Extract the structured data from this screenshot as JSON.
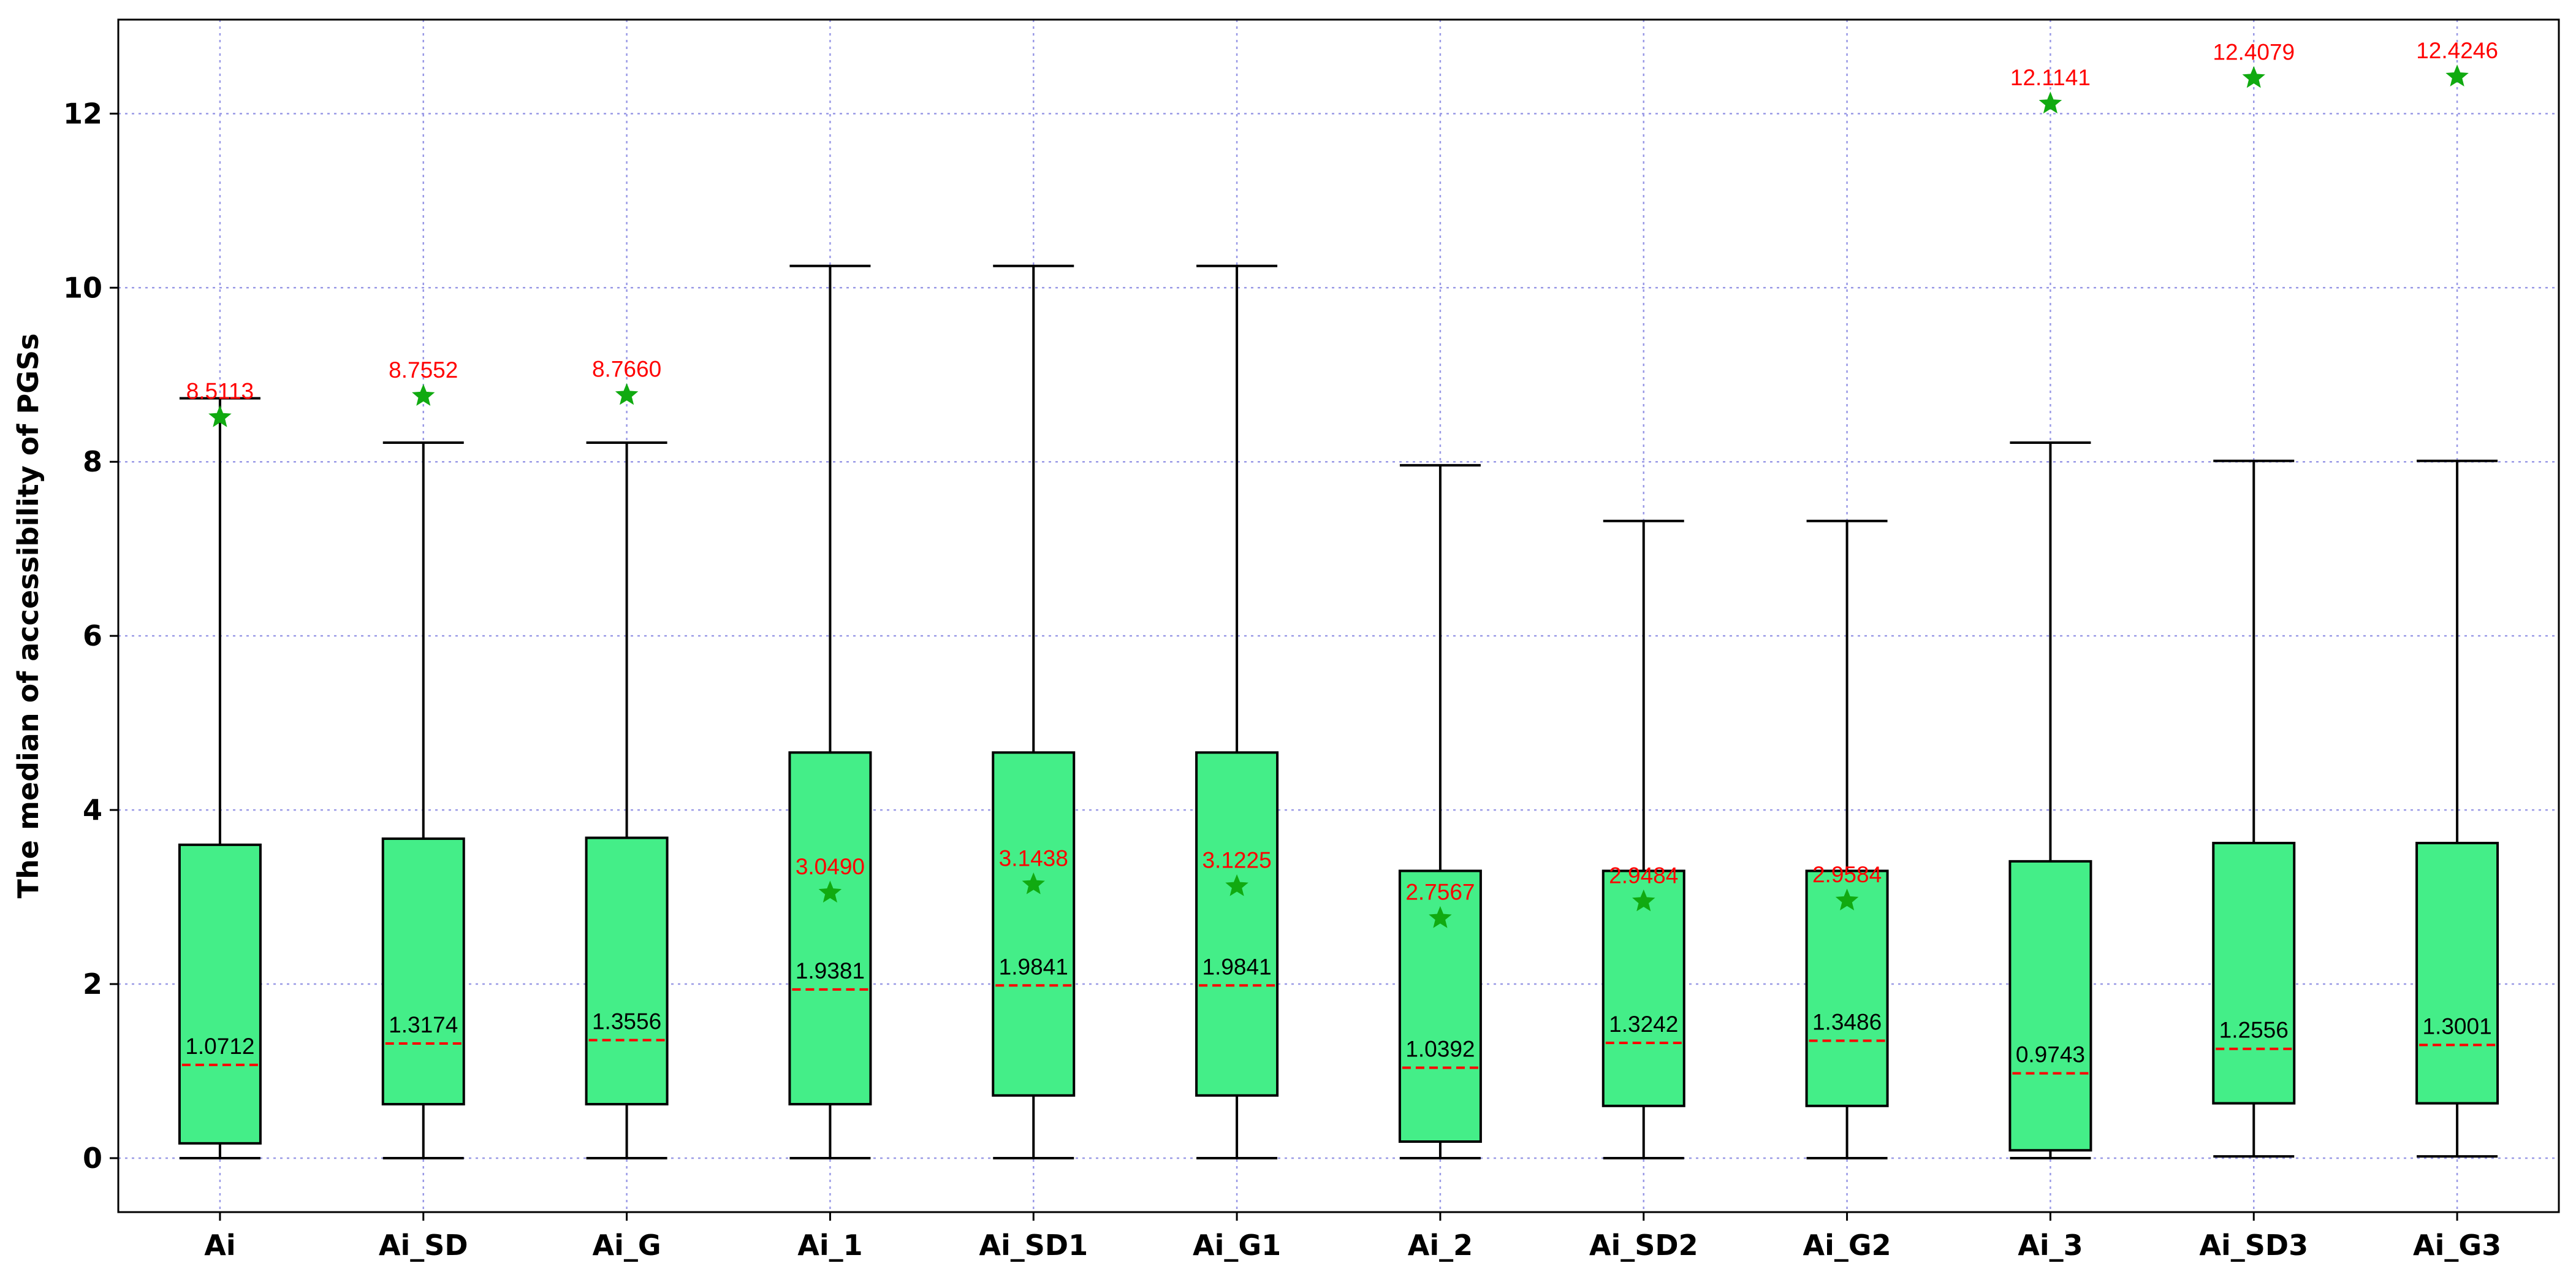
{
  "chart_data": {
    "type": "box",
    "title": "",
    "xlabel": "",
    "ylabel": "The median of accessibility of PGSs",
    "ylim": [
      -0.62,
      13.08
    ],
    "yticks": [
      0,
      2,
      4,
      6,
      8,
      10,
      12
    ],
    "grid": true,
    "colors": {
      "box_fill": "#44ee88",
      "box_edge": "#000000",
      "median_line": "#ff0000",
      "mean_marker": "#11aa11",
      "mean_label": "#ff0000",
      "median_label": "#000000",
      "grid": "#9a9ae6"
    },
    "categories": [
      "Ai",
      "Ai_SD",
      "Ai_G",
      "Ai_1",
      "Ai_SD1",
      "Ai_G1",
      "Ai_2",
      "Ai_SD2",
      "Ai_G2",
      "Ai_3",
      "Ai_SD3",
      "Ai_G3"
    ],
    "boxes": [
      {
        "label": "Ai",
        "whisker_low": 0.0,
        "q1": 0.17,
        "median": 1.0712,
        "q3": 3.6,
        "whisker_high": 8.73,
        "mean": 8.5113,
        "median_label": "1.0712",
        "mean_label": "8.5113"
      },
      {
        "label": "Ai_SD",
        "whisker_low": 0.0,
        "q1": 0.62,
        "median": 1.3174,
        "q3": 3.67,
        "whisker_high": 8.22,
        "mean": 8.7552,
        "median_label": "1.3174",
        "mean_label": "8.7552"
      },
      {
        "label": "Ai_G",
        "whisker_low": 0.0,
        "q1": 0.62,
        "median": 1.3556,
        "q3": 3.68,
        "whisker_high": 8.22,
        "mean": 8.766,
        "median_label": "1.3556",
        "mean_label": "8.7660"
      },
      {
        "label": "Ai_1",
        "whisker_low": 0.0,
        "q1": 0.62,
        "median": 1.9381,
        "q3": 4.66,
        "whisker_high": 10.25,
        "mean": 3.049,
        "median_label": "1.9381",
        "mean_label": "3.0490"
      },
      {
        "label": "Ai_SD1",
        "whisker_low": 0.0,
        "q1": 0.72,
        "median": 1.9841,
        "q3": 4.66,
        "whisker_high": 10.25,
        "mean": 3.1438,
        "median_label": "1.9841",
        "mean_label": "3.1438"
      },
      {
        "label": "Ai_G1",
        "whisker_low": 0.0,
        "q1": 0.72,
        "median": 1.9841,
        "q3": 4.66,
        "whisker_high": 10.25,
        "mean": 3.1225,
        "median_label": "1.9841",
        "mean_label": "3.1225"
      },
      {
        "label": "Ai_2",
        "whisker_low": 0.0,
        "q1": 0.19,
        "median": 1.0392,
        "q3": 3.3,
        "whisker_high": 7.96,
        "mean": 2.7567,
        "median_label": "1.0392",
        "mean_label": "2.7567"
      },
      {
        "label": "Ai_SD2",
        "whisker_low": 0.0,
        "q1": 0.6,
        "median": 1.3242,
        "q3": 3.3,
        "whisker_high": 7.32,
        "mean": 2.9484,
        "median_label": "1.3242",
        "mean_label": "2.9484"
      },
      {
        "label": "Ai_G2",
        "whisker_low": 0.0,
        "q1": 0.6,
        "median": 1.3486,
        "q3": 3.3,
        "whisker_high": 7.32,
        "mean": 2.9584,
        "median_label": "1.3486",
        "mean_label": "2.9584"
      },
      {
        "label": "Ai_3",
        "whisker_low": 0.0,
        "q1": 0.09,
        "median": 0.9743,
        "q3": 3.41,
        "whisker_high": 8.22,
        "mean": 12.1141,
        "median_label": "0.9743",
        "mean_label": "12.1141"
      },
      {
        "label": "Ai_SD3",
        "whisker_low": 0.02,
        "q1": 0.63,
        "median": 1.2556,
        "q3": 3.62,
        "whisker_high": 8.01,
        "mean": 12.4079,
        "median_label": "1.2556",
        "mean_label": "12.4079"
      },
      {
        "label": "Ai_G3",
        "whisker_low": 0.02,
        "q1": 0.63,
        "median": 1.3001,
        "q3": 3.62,
        "whisker_high": 8.01,
        "mean": 12.4246,
        "median_label": "1.3001",
        "mean_label": "12.4246"
      }
    ]
  }
}
